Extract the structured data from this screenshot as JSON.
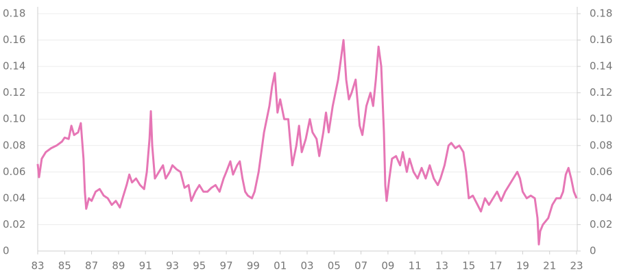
{
  "chart_data": {
    "type": "line",
    "x": [
      1983.0,
      1983.1,
      1983.3,
      1983.6,
      1984.0,
      1984.4,
      1984.8,
      1985.0,
      1985.3,
      1985.5,
      1985.7,
      1986.0,
      1986.2,
      1986.4,
      1986.5,
      1986.6,
      1986.8,
      1987.0,
      1987.3,
      1987.6,
      1987.9,
      1988.2,
      1988.5,
      1988.8,
      1989.1,
      1989.3,
      1989.6,
      1989.8,
      1990.0,
      1990.3,
      1990.6,
      1990.9,
      1991.1,
      1991.3,
      1991.4,
      1991.5,
      1991.7,
      1992.0,
      1992.3,
      1992.5,
      1992.8,
      1993.0,
      1993.3,
      1993.6,
      1993.9,
      1994.2,
      1994.4,
      1994.7,
      1995.0,
      1995.3,
      1995.6,
      1995.9,
      1996.2,
      1996.5,
      1996.8,
      1997.0,
      1997.3,
      1997.5,
      1997.8,
      1998.0,
      1998.2,
      1998.4,
      1998.6,
      1998.9,
      1999.1,
      1999.4,
      1999.6,
      1999.8,
      2000.0,
      2000.2,
      2000.4,
      2000.6,
      2000.8,
      2001.0,
      2001.3,
      2001.6,
      2001.9,
      2002.2,
      2002.4,
      2002.6,
      2002.9,
      2003.2,
      2003.4,
      2003.7,
      2003.9,
      2004.2,
      2004.4,
      2004.6,
      2004.9,
      2005.1,
      2005.3,
      2005.5,
      2005.7,
      2005.9,
      2006.1,
      2006.3,
      2006.6,
      2006.9,
      2007.1,
      2007.4,
      2007.7,
      2007.9,
      2008.1,
      2008.3,
      2008.5,
      2008.7,
      2008.8,
      2008.9,
      2009.1,
      2009.3,
      2009.6,
      2009.9,
      2010.1,
      2010.4,
      2010.6,
      2010.9,
      2011.2,
      2011.5,
      2011.8,
      2012.1,
      2012.4,
      2012.7,
      2012.9,
      2013.2,
      2013.5,
      2013.7,
      2014.0,
      2014.3,
      2014.6,
      2014.8,
      2015.0,
      2015.3,
      2015.6,
      2015.9,
      2016.2,
      2016.5,
      2016.8,
      2017.1,
      2017.4,
      2017.7,
      2018.0,
      2018.3,
      2018.6,
      2018.8,
      2019.0,
      2019.3,
      2019.6,
      2019.9,
      2020.1,
      2020.2,
      2020.3,
      2020.5,
      2020.9,
      2021.2,
      2021.5,
      2021.8,
      2022.0,
      2022.2,
      2022.4,
      2022.6,
      2022.8,
      2023.0
    ],
    "series": [
      {
        "color": "#e676b5",
        "values": [
          0.066,
          0.056,
          0.07,
          0.075,
          0.078,
          0.08,
          0.083,
          0.086,
          0.085,
          0.095,
          0.088,
          0.09,
          0.097,
          0.07,
          0.045,
          0.032,
          0.04,
          0.038,
          0.045,
          0.047,
          0.042,
          0.04,
          0.035,
          0.038,
          0.033,
          0.04,
          0.05,
          0.058,
          0.052,
          0.055,
          0.05,
          0.047,
          0.06,
          0.085,
          0.106,
          0.08,
          0.055,
          0.06,
          0.065,
          0.055,
          0.06,
          0.065,
          0.062,
          0.06,
          0.048,
          0.05,
          0.038,
          0.045,
          0.05,
          0.045,
          0.045,
          0.048,
          0.05,
          0.045,
          0.055,
          0.06,
          0.068,
          0.058,
          0.065,
          0.068,
          0.055,
          0.045,
          0.042,
          0.04,
          0.045,
          0.06,
          0.075,
          0.09,
          0.1,
          0.11,
          0.125,
          0.135,
          0.105,
          0.115,
          0.1,
          0.1,
          0.065,
          0.08,
          0.095,
          0.075,
          0.085,
          0.1,
          0.09,
          0.085,
          0.072,
          0.09,
          0.105,
          0.09,
          0.11,
          0.12,
          0.13,
          0.145,
          0.16,
          0.13,
          0.115,
          0.12,
          0.13,
          0.095,
          0.088,
          0.11,
          0.12,
          0.11,
          0.13,
          0.155,
          0.14,
          0.09,
          0.05,
          0.038,
          0.055,
          0.07,
          0.072,
          0.065,
          0.075,
          0.06,
          0.07,
          0.06,
          0.055,
          0.063,
          0.055,
          0.065,
          0.055,
          0.05,
          0.055,
          0.065,
          0.08,
          0.082,
          0.078,
          0.08,
          0.075,
          0.06,
          0.04,
          0.042,
          0.036,
          0.03,
          0.04,
          0.035,
          0.04,
          0.045,
          0.038,
          0.045,
          0.05,
          0.055,
          0.06,
          0.055,
          0.045,
          0.04,
          0.042,
          0.04,
          0.025,
          0.005,
          0.015,
          0.02,
          0.025,
          0.035,
          0.04,
          0.04,
          0.045,
          0.058,
          0.063,
          0.055,
          0.045,
          0.04
        ]
      }
    ],
    "xlim": [
      1983,
      2023.05
    ],
    "xticks": [
      {
        "value": 1983,
        "label": "83"
      },
      {
        "value": 1985,
        "label": "85"
      },
      {
        "value": 1987,
        "label": "87"
      },
      {
        "value": 1989,
        "label": "89"
      },
      {
        "value": 1991,
        "label": "91"
      },
      {
        "value": 1993,
        "label": "93"
      },
      {
        "value": 1995,
        "label": "95"
      },
      {
        "value": 1997,
        "label": "97"
      },
      {
        "value": 1999,
        "label": "99"
      },
      {
        "value": 2001,
        "label": "01"
      },
      {
        "value": 2003,
        "label": "03"
      },
      {
        "value": 2005,
        "label": "05"
      },
      {
        "value": 2007,
        "label": "07"
      },
      {
        "value": 2009,
        "label": "09"
      },
      {
        "value": 2011,
        "label": "11"
      },
      {
        "value": 2013,
        "label": "13"
      },
      {
        "value": 2015,
        "label": "15"
      },
      {
        "value": 2017,
        "label": "17"
      },
      {
        "value": 2019,
        "label": "19"
      },
      {
        "value": 2021,
        "label": "21"
      },
      {
        "value": 2023,
        "label": "23"
      }
    ],
    "ylim": [
      0,
      0.18
    ],
    "yticks": [
      0,
      0.02,
      0.04,
      0.06,
      0.08,
      {
        "value": 0.1,
        "label": "0.10"
      },
      0.12,
      0.14,
      0.16,
      0.18
    ],
    "y2lim": [
      0,
      0.18
    ],
    "y2ticks": [
      0,
      0.02,
      0.04,
      0.06,
      0.08,
      {
        "value": 0.1,
        "label": "0.10"
      },
      0.12,
      0.14,
      0.16,
      0.18
    ],
    "grid": true
  }
}
